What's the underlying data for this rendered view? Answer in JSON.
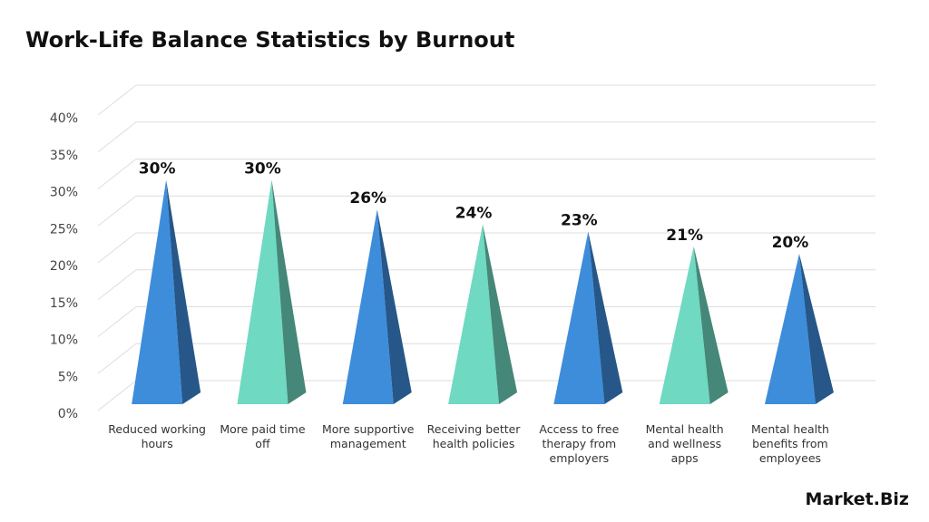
{
  "chart_data": {
    "type": "pyramid",
    "title": "Work-Life Balance Statistics by Burnout",
    "categories": [
      "Reduced working hours",
      "More paid time off",
      "More supportive management",
      "Receiving better health policies",
      "Access to free therapy from employers",
      "Mental health and wellness apps",
      "Mental health benefits from employees"
    ],
    "values": [
      30,
      30,
      26,
      24,
      23,
      21,
      20
    ],
    "value_labels": [
      "30%",
      "30%",
      "26%",
      "24%",
      "23%",
      "21%",
      "20%"
    ],
    "colors": [
      "#3d8ddb",
      "#6fd9c1",
      "#3d8ddb",
      "#6fd9c1",
      "#3d8ddb",
      "#6fd9c1",
      "#3d8ddb"
    ],
    "ylim": [
      0,
      40
    ],
    "yticks": [
      {
        "value": 0,
        "label": "0%"
      },
      {
        "value": 5,
        "label": "5%"
      },
      {
        "value": 10,
        "label": "10%"
      },
      {
        "value": 15,
        "label": "15%"
      },
      {
        "value": 20,
        "label": "20%"
      },
      {
        "value": 25,
        "label": "25%"
      },
      {
        "value": 30,
        "label": "30%"
      },
      {
        "value": 35,
        "label": "35%"
      },
      {
        "value": 40,
        "label": "40%"
      }
    ],
    "grid": true
  },
  "watermark": "Market.Biz"
}
